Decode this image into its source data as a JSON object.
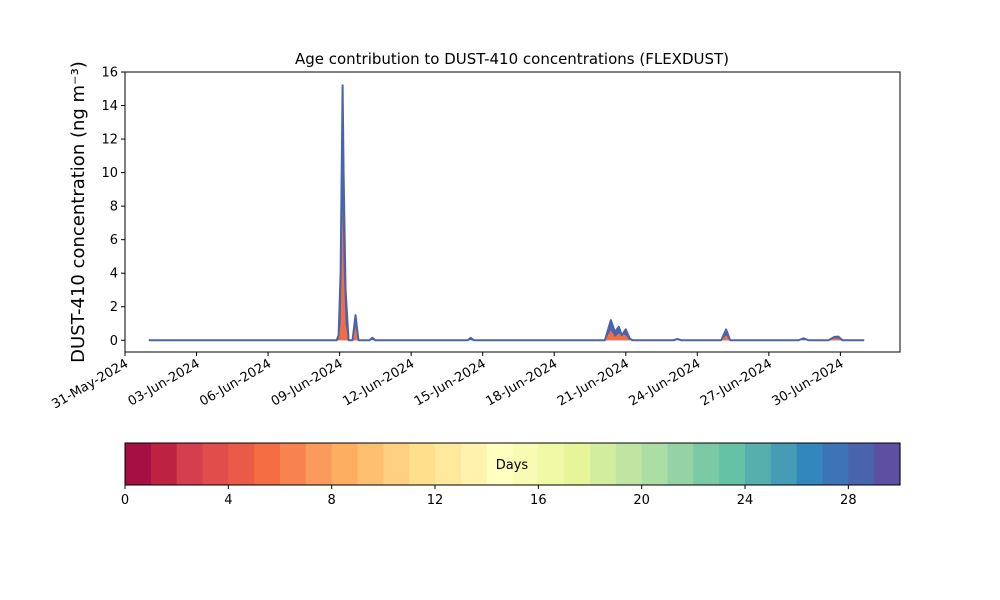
{
  "chart_data": {
    "type": "area",
    "title": "Age contribution to DUST-410 concentrations (FLEXDUST)",
    "ylabel": "DUST-410 concentration (ng m⁻³)",
    "xlabel": "",
    "x_range": [
      "2024-05-31T00:00",
      "2024-07-02T12:00"
    ],
    "ylim": [
      -0.7,
      16
    ],
    "y_ticks": [
      0,
      2,
      4,
      6,
      8,
      10,
      12,
      14,
      16
    ],
    "x_ticks": [
      "2024-05-31",
      "2024-06-03",
      "2024-06-06",
      "2024-06-09",
      "2024-06-12",
      "2024-06-15",
      "2024-06-18",
      "2024-06-21",
      "2024-06-24",
      "2024-06-27",
      "2024-06-30"
    ],
    "x_tick_labels": [
      "31-May-2024",
      "03-Jun-2024",
      "06-Jun-2024",
      "09-Jun-2024",
      "12-Jun-2024",
      "15-Jun-2024",
      "18-Jun-2024",
      "21-Jun-2024",
      "24-Jun-2024",
      "27-Jun-2024",
      "30-Jun-2024"
    ],
    "grid": false,
    "series_start": "2024-06-01T00:00",
    "series_end": "2024-07-01T00:00",
    "total_concentration": [
      [
        "2024-06-01T00:00",
        0
      ],
      [
        "2024-06-08T21:00",
        0
      ],
      [
        "2024-06-08T23:00",
        0.3
      ],
      [
        "2024-06-09T01:00",
        4.0
      ],
      [
        "2024-06-09T03:00",
        15.2
      ],
      [
        "2024-06-09T04:00",
        10.0
      ],
      [
        "2024-06-09T06:00",
        3.0
      ],
      [
        "2024-06-09T09:00",
        0
      ],
      [
        "2024-06-09T13:00",
        0
      ],
      [
        "2024-06-09T16:00",
        1.5
      ],
      [
        "2024-06-09T19:00",
        0
      ],
      [
        "2024-06-10T06:00",
        0
      ],
      [
        "2024-06-10T09:00",
        0.15
      ],
      [
        "2024-06-10T12:00",
        0
      ],
      [
        "2024-06-14T09:00",
        0
      ],
      [
        "2024-06-14T12:00",
        0.15
      ],
      [
        "2024-06-14T15:00",
        0
      ],
      [
        "2024-06-20T03:00",
        0
      ],
      [
        "2024-06-20T09:00",
        1.2
      ],
      [
        "2024-06-20T13:00",
        0.5
      ],
      [
        "2024-06-20T17:00",
        0.8
      ],
      [
        "2024-06-20T20:00",
        0.3
      ],
      [
        "2024-06-21T00:00",
        0.65
      ],
      [
        "2024-06-21T04:00",
        0.1
      ],
      [
        "2024-06-21T07:00",
        0
      ],
      [
        "2024-06-23T00:00",
        0
      ],
      [
        "2024-06-23T04:00",
        0.08
      ],
      [
        "2024-06-23T08:00",
        0
      ],
      [
        "2024-06-25T00:00",
        0
      ],
      [
        "2024-06-25T05:00",
        0.65
      ],
      [
        "2024-06-25T09:00",
        0
      ],
      [
        "2024-06-28T06:00",
        0
      ],
      [
        "2024-06-28T11:00",
        0.12
      ],
      [
        "2024-06-28T16:00",
        0
      ],
      [
        "2024-06-29T12:00",
        0
      ],
      [
        "2024-06-29T18:00",
        0.2
      ],
      [
        "2024-06-29T22:00",
        0.22
      ],
      [
        "2024-06-30T02:00",
        0
      ],
      [
        "2024-07-01T00:00",
        0
      ]
    ],
    "fresh_contribution": [
      [
        "2024-06-01T00:00",
        0
      ],
      [
        "2024-06-08T23:00",
        0
      ],
      [
        "2024-06-09T01:00",
        1.0
      ],
      [
        "2024-06-09T03:00",
        8.0
      ],
      [
        "2024-06-09T04:00",
        4.5
      ],
      [
        "2024-06-09T06:00",
        1.0
      ],
      [
        "2024-06-09T09:00",
        0
      ],
      [
        "2024-06-09T13:00",
        0
      ],
      [
        "2024-06-09T16:00",
        0.8
      ],
      [
        "2024-06-09T19:00",
        0
      ],
      [
        "2024-06-20T03:00",
        0
      ],
      [
        "2024-06-20T09:00",
        0.6
      ],
      [
        "2024-06-20T13:00",
        0.2
      ],
      [
        "2024-06-20T17:00",
        0.4
      ],
      [
        "2024-06-21T00:00",
        0.3
      ],
      [
        "2024-06-21T04:00",
        0
      ],
      [
        "2024-06-25T00:00",
        0
      ],
      [
        "2024-06-25T05:00",
        0.3
      ],
      [
        "2024-06-25T09:00",
        0
      ],
      [
        "2024-06-29T12:00",
        0
      ],
      [
        "2024-06-29T18:00",
        0.12
      ],
      [
        "2024-06-29T22:00",
        0.1
      ],
      [
        "2024-06-30T02:00",
        0
      ],
      [
        "2024-07-01T00:00",
        0
      ]
    ],
    "colorbar": {
      "label": "Days",
      "range": [
        0,
        30
      ],
      "ticks": [
        0,
        4,
        8,
        12,
        16,
        20,
        24,
        28
      ],
      "colors": [
        "#a50f43",
        "#bd2341",
        "#d53e4f",
        "#e04d4a",
        "#ea5b47",
        "#f46d43",
        "#f78450",
        "#fa9b5c",
        "#fdae61",
        "#fdbf70",
        "#fed080",
        "#fee08b",
        "#fee99c",
        "#fff3ad",
        "#ffffbf",
        "#f8fbb2",
        "#f0f9a6",
        "#e6f598",
        "#d2ed9e",
        "#bfe5a0",
        "#abdda4",
        "#93d3a4",
        "#7cc9a5",
        "#66c2a5",
        "#56afad",
        "#459cb4",
        "#3288bd",
        "#3d74b5",
        "#4a63ad",
        "#5e4fa2"
      ]
    }
  }
}
